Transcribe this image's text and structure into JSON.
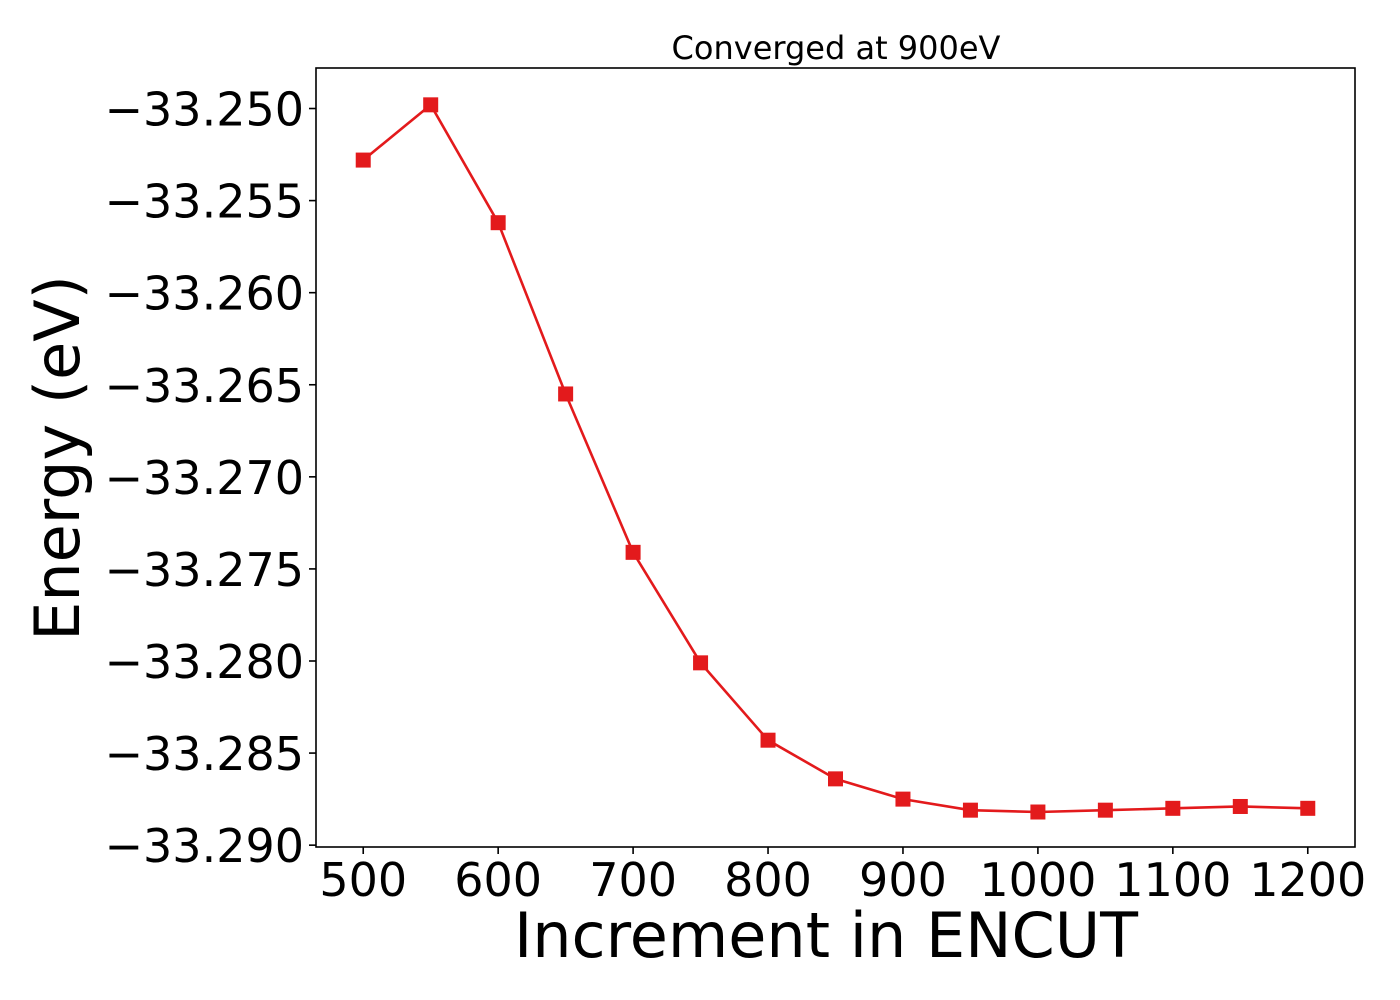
{
  "chart_data": {
    "type": "line",
    "title": "Converged at 900eV",
    "xlabel": "Increment in ENCUT",
    "ylabel": "Energy (eV)",
    "xlim": [
      465,
      1235
    ],
    "ylim": [
      -33.2901,
      -33.2478
    ],
    "x_ticks": [
      500,
      600,
      700,
      800,
      900,
      1000,
      1100,
      1200
    ],
    "x_tick_labels": [
      "500",
      "600",
      "700",
      "800",
      "900",
      "1000",
      "1100",
      "1200"
    ],
    "y_ticks": [
      -33.25,
      -33.255,
      -33.26,
      -33.265,
      -33.27,
      -33.275,
      -33.28,
      -33.285,
      -33.29
    ],
    "y_tick_labels": [
      "−33.250",
      "−33.255",
      "−33.260",
      "−33.265",
      "−33.270",
      "−33.275",
      "−33.280",
      "−33.285",
      "−33.290"
    ],
    "grid": false,
    "legend": "none",
    "series": [
      {
        "color": "#e31a1c",
        "marker": "square",
        "x": [
          500,
          550,
          600,
          650,
          700,
          750,
          800,
          850,
          900,
          950,
          1000,
          1050,
          1100,
          1150,
          1200
        ],
        "y": [
          -33.2528,
          -33.2498,
          -33.2562,
          -33.2655,
          -33.2741,
          -33.2801,
          -33.2843,
          -33.2864,
          -33.2875,
          -33.2881,
          -33.2882,
          -33.2881,
          -33.288,
          -33.2879,
          -33.288
        ]
      }
    ]
  }
}
